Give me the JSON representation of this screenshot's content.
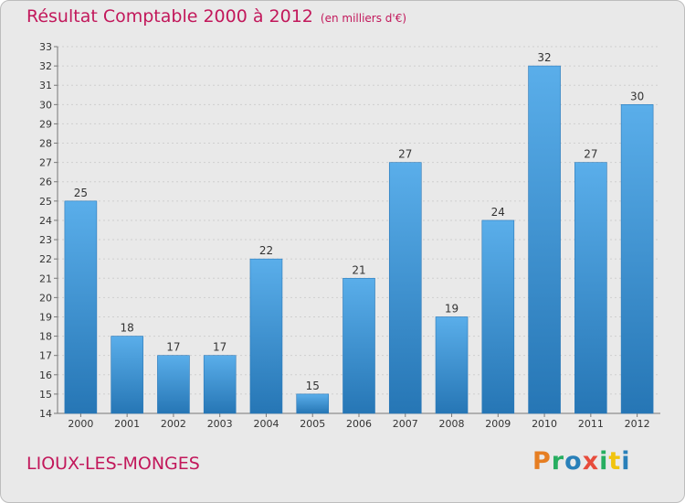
{
  "header": {
    "title": "Résultat Comptable 2000 à 2012",
    "subtitle": "(en milliers d'€)"
  },
  "footer": {
    "city": "LIOUX-LES-MONGES",
    "logo": "Proxiti"
  },
  "colors": {
    "title": "#c2185b",
    "bar_top": "#5aaeea",
    "bar_bottom": "#2676b5",
    "background": "#e9e9e9",
    "logo_letters": [
      "#e67e22",
      "#27ae60",
      "#2980b9",
      "#e74c3c",
      "#27ae60",
      "#f1c40f",
      "#2980b9"
    ]
  },
  "chart_data": {
    "type": "bar",
    "title": "Résultat Comptable 2000 à 2012",
    "subtitle": "(en milliers d'€)",
    "categories": [
      "2000",
      "2001",
      "2002",
      "2003",
      "2004",
      "2005",
      "2006",
      "2007",
      "2008",
      "2009",
      "2010",
      "2011",
      "2012"
    ],
    "values": [
      25,
      18,
      17,
      17,
      22,
      15,
      21,
      27,
      19,
      24,
      32,
      27,
      30
    ],
    "ylim": [
      14,
      33
    ],
    "yticks": [
      14,
      15,
      16,
      17,
      18,
      19,
      20,
      21,
      22,
      23,
      24,
      25,
      26,
      27,
      28,
      29,
      30,
      31,
      32,
      33
    ],
    "grid": true,
    "legend": "none"
  }
}
